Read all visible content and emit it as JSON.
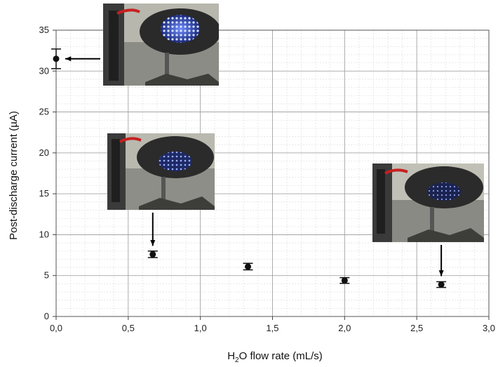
{
  "chart_data": {
    "type": "scatter",
    "xlabel_main": "H",
    "xlabel_sub": "2",
    "xlabel_rest": "O flow rate (mL/s)",
    "ylabel": "Post-discharge current (µA)",
    "xlim": [
      0,
      3
    ],
    "ylim": [
      0,
      35
    ],
    "x_ticks": [
      0,
      0.5,
      1,
      1.5,
      2,
      2.5,
      3
    ],
    "x_tick_labels": [
      "0,0",
      "0,5",
      "1,0",
      "1,5",
      "2,0",
      "2,5",
      "3,0"
    ],
    "y_ticks": [
      0,
      5,
      10,
      15,
      20,
      25,
      30,
      35
    ],
    "y_tick_labels": [
      "0",
      "5",
      "10",
      "15",
      "20",
      "25",
      "30",
      "35"
    ],
    "grid": true,
    "points": [
      {
        "x": 0.0,
        "y": 31.5,
        "err": 1.2
      },
      {
        "x": 0.67,
        "y": 7.6,
        "err": 0.4
      },
      {
        "x": 1.33,
        "y": 6.1,
        "err": 0.4
      },
      {
        "x": 2.0,
        "y": 4.4,
        "err": 0.35
      },
      {
        "x": 2.67,
        "y": 3.9,
        "err": 0.35
      }
    ],
    "marker_color": "#111111"
  },
  "insets": [
    {
      "name": "photo-inset-no-water",
      "brightness": "high"
    },
    {
      "name": "photo-inset-067",
      "brightness": "medium"
    },
    {
      "name": "photo-inset-267",
      "brightness": "low"
    }
  ]
}
